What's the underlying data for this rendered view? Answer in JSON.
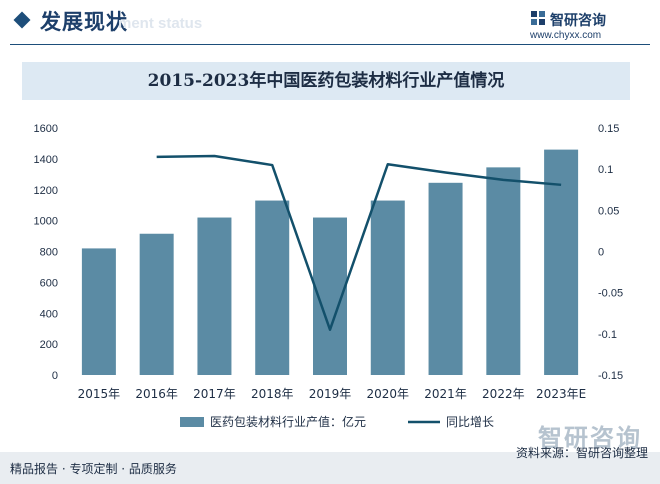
{
  "header": {
    "title": "发展现状",
    "ghost_subtitle": "ment status"
  },
  "brand": {
    "name": "智研咨询",
    "url": "www.chyxx.com"
  },
  "watermark": {
    "brand": "智研咨询"
  },
  "chart_data": {
    "type": "bar",
    "title": "2015-2023年中国医药包装材料行业产值情况",
    "categories": [
      "2015年",
      "2016年",
      "2017年",
      "2018年",
      "2019年",
      "2020年",
      "2021年",
      "2022年",
      "2023年E"
    ],
    "series": [
      {
        "name": "医药包装材料行业产值：亿元",
        "type": "bar",
        "axis": "left",
        "color": "#5b8ba4",
        "values": [
          820,
          915,
          1020,
          1130,
          1020,
          1130,
          1245,
          1345,
          1460
        ]
      },
      {
        "name": "同比增长",
        "type": "line",
        "axis": "right",
        "color": "#13506b",
        "values": [
          null,
          0.115,
          0.116,
          0.105,
          -0.095,
          0.106,
          0.096,
          0.087,
          0.081
        ]
      }
    ],
    "y_left": {
      "min": 0,
      "max": 1600,
      "ticks": [
        0,
        200,
        400,
        600,
        800,
        1000,
        1200,
        1400,
        1600
      ]
    },
    "y_right": {
      "min": -0.15,
      "max": 0.15,
      "ticks": [
        "0.15",
        "0.1",
        "0.05",
        "0",
        "-0.05",
        "-0.1",
        "-0.15"
      ]
    },
    "legend_position": "bottom"
  },
  "footer": {
    "slogan": "精品报告 · 专项定制 · 品质服务",
    "source_label": "资料来源：",
    "source_value": "智研咨询整理"
  }
}
